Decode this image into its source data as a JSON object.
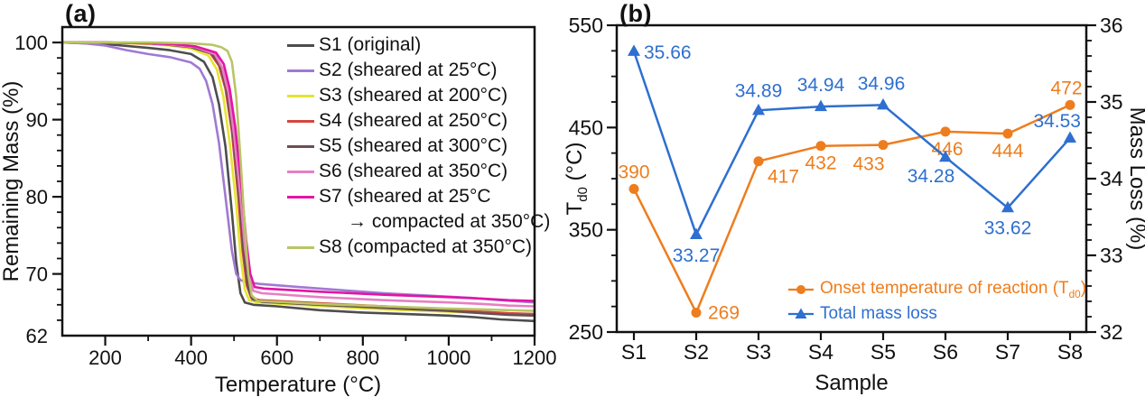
{
  "figure": {
    "background": "#ffffff",
    "text_color": "#111111"
  },
  "chart_data": [
    {
      "type": "line",
      "title": "(a)",
      "xlabel": "Temperature (°C)",
      "ylabel": "Remaining Mass (%)",
      "xlim": [
        100,
        1200
      ],
      "ylim": [
        62,
        102
      ],
      "xticks": [
        200,
        400,
        600,
        800,
        1000,
        1200
      ],
      "xminor_step": 100,
      "yticks": [
        70,
        80,
        90,
        100
      ],
      "yminor_step": 2,
      "extra_ytick_label": "62",
      "grid": false,
      "legend_position": "upper right",
      "series": [
        {
          "id": "S1",
          "label": "S1 (original)",
          "color": "#4d4d4d",
          "points": [
            [
              100,
              100
            ],
            [
              200,
              99.8
            ],
            [
              300,
              99.3
            ],
            [
              350,
              99.0
            ],
            [
              400,
              98.5
            ],
            [
              430,
              97.5
            ],
            [
              450,
              95.5
            ],
            [
              465,
              92
            ],
            [
              480,
              86.5
            ],
            [
              495,
              78
            ],
            [
              505,
              71.5
            ],
            [
              515,
              67.5
            ],
            [
              525,
              66.3
            ],
            [
              545,
              66.0
            ],
            [
              600,
              65.8
            ],
            [
              700,
              65.3
            ],
            [
              800,
              65.0
            ],
            [
              900,
              64.8
            ],
            [
              1000,
              64.6
            ],
            [
              1060,
              64.4
            ],
            [
              1120,
              64.1
            ],
            [
              1200,
              63.9
            ]
          ]
        },
        {
          "id": "S2",
          "label": "S2 (sheared at 25°C)",
          "color": "#a179d2",
          "points": [
            [
              100,
              100
            ],
            [
              150,
              99.9
            ],
            [
              200,
              99.6
            ],
            [
              250,
              99.0
            ],
            [
              300,
              98.5
            ],
            [
              350,
              98.1
            ],
            [
              400,
              97.4
            ],
            [
              420,
              96.6
            ],
            [
              435,
              95.0
            ],
            [
              450,
              92.0
            ],
            [
              465,
              87.0
            ],
            [
              480,
              80.0
            ],
            [
              495,
              73.0
            ],
            [
              505,
              70.0
            ],
            [
              515,
              69.2
            ],
            [
              530,
              68.9
            ],
            [
              560,
              68.7
            ],
            [
              650,
              68.3
            ],
            [
              750,
              67.9
            ],
            [
              850,
              67.5
            ],
            [
              950,
              67.2
            ],
            [
              1050,
              66.9
            ],
            [
              1120,
              66.6
            ],
            [
              1200,
              66.3
            ]
          ]
        },
        {
          "id": "S3",
          "label": "S3 (sheared at 200°C)",
          "color": "#e5e431",
          "points": [
            [
              100,
              100
            ],
            [
              200,
              100
            ],
            [
              300,
              99.8
            ],
            [
              350,
              99.6
            ],
            [
              400,
              99.2
            ],
            [
              440,
              98.3
            ],
            [
              460,
              96.5
            ],
            [
              475,
              93.0
            ],
            [
              490,
              87.0
            ],
            [
              505,
              79.0
            ],
            [
              515,
              72.5
            ],
            [
              525,
              68.0
            ],
            [
              535,
              66.6
            ],
            [
              555,
              66.3
            ],
            [
              650,
              66.0
            ],
            [
              750,
              65.7
            ],
            [
              850,
              65.4
            ],
            [
              950,
              65.2
            ],
            [
              1050,
              65.0
            ],
            [
              1120,
              64.9
            ],
            [
              1200,
              64.8
            ]
          ]
        },
        {
          "id": "S4",
          "label": "S4 (sheared at 250°C)",
          "color": "#d5463c",
          "points": [
            [
              100,
              100
            ],
            [
              200,
              100
            ],
            [
              300,
              99.9
            ],
            [
              350,
              99.7
            ],
            [
              400,
              99.4
            ],
            [
              445,
              98.6
            ],
            [
              465,
              97.0
            ],
            [
              480,
              94.0
            ],
            [
              495,
              88.5
            ],
            [
              510,
              80.0
            ],
            [
              520,
              73.0
            ],
            [
              530,
              68.5
            ],
            [
              540,
              66.9
            ],
            [
              560,
              66.6
            ],
            [
              700,
              66.2
            ],
            [
              850,
              65.8
            ],
            [
              1000,
              65.4
            ],
            [
              1080,
              65.1
            ],
            [
              1140,
              64.9
            ],
            [
              1200,
              64.8
            ]
          ]
        },
        {
          "id": "S5",
          "label": "S5 (sheared at 300°C)",
          "color": "#6a4f52",
          "points": [
            [
              100,
              100
            ],
            [
              200,
              100
            ],
            [
              300,
              99.9
            ],
            [
              350,
              99.7
            ],
            [
              400,
              99.4
            ],
            [
              448,
              98.6
            ],
            [
              468,
              97.0
            ],
            [
              483,
              93.8
            ],
            [
              498,
              88.0
            ],
            [
              513,
              79.5
            ],
            [
              523,
              72.5
            ],
            [
              533,
              68.2
            ],
            [
              543,
              66.7
            ],
            [
              565,
              66.4
            ],
            [
              700,
              66.0
            ],
            [
              850,
              65.6
            ],
            [
              1000,
              65.2
            ],
            [
              1080,
              64.9
            ],
            [
              1140,
              64.7
            ],
            [
              1200,
              64.6
            ]
          ]
        },
        {
          "id": "S6",
          "label": "S6 (sheared at 350°C)",
          "color": "#e77fc2",
          "points": [
            [
              100,
              100
            ],
            [
              200,
              100
            ],
            [
              300,
              99.9
            ],
            [
              360,
              99.7
            ],
            [
              410,
              99.4
            ],
            [
              455,
              98.5
            ],
            [
              472,
              96.8
            ],
            [
              487,
              93.5
            ],
            [
              500,
              88.0
            ],
            [
              515,
              80.0
            ],
            [
              525,
              73.5
            ],
            [
              535,
              69.5
            ],
            [
              545,
              67.8
            ],
            [
              565,
              67.5
            ],
            [
              700,
              67.0
            ],
            [
              850,
              66.6
            ],
            [
              1000,
              66.3
            ],
            [
              1080,
              66.1
            ],
            [
              1140,
              65.9
            ],
            [
              1200,
              65.8
            ]
          ]
        },
        {
          "id": "S7",
          "label": "S7 (sheared at 25°C",
          "label2": "→ compacted at 350°C)",
          "color": "#e215a5",
          "points": [
            [
              100,
              100
            ],
            [
              200,
              100
            ],
            [
              300,
              99.9
            ],
            [
              360,
              99.8
            ],
            [
              410,
              99.5
            ],
            [
              458,
              98.7
            ],
            [
              476,
              97.2
            ],
            [
              490,
              94.0
            ],
            [
              503,
              89.0
            ],
            [
              518,
              81.0
            ],
            [
              528,
              74.5
            ],
            [
              538,
              70.0
            ],
            [
              548,
              68.3
            ],
            [
              570,
              68.1
            ],
            [
              700,
              67.7
            ],
            [
              850,
              67.3
            ],
            [
              1000,
              67.0
            ],
            [
              1080,
              66.8
            ],
            [
              1140,
              66.6
            ],
            [
              1200,
              66.5
            ]
          ]
        },
        {
          "id": "S8",
          "label": "S8 (compacted at 350°C)",
          "color": "#b9c565",
          "points": [
            [
              100,
              100
            ],
            [
              200,
              100
            ],
            [
              300,
              100
            ],
            [
              400,
              99.9
            ],
            [
              450,
              99.7
            ],
            [
              470,
              99.4
            ],
            [
              485,
              98.9
            ],
            [
              495,
              97.5
            ],
            [
              505,
              93.0
            ],
            [
              515,
              85.0
            ],
            [
              525,
              76.0
            ],
            [
              533,
              70.0
            ],
            [
              541,
              67.2
            ],
            [
              555,
              66.5
            ],
            [
              700,
              66.1
            ],
            [
              850,
              65.8
            ],
            [
              1000,
              65.5
            ],
            [
              1080,
              65.4
            ],
            [
              1140,
              65.3
            ],
            [
              1200,
              65.2
            ]
          ]
        }
      ]
    },
    {
      "type": "line",
      "title": "(b)",
      "xlabel": "Sample",
      "categories": [
        "S1",
        "S2",
        "S3",
        "S4",
        "S5",
        "S6",
        "S7",
        "S8"
      ],
      "ylabel_left_parts": [
        {
          "t": "T"
        },
        {
          "t": "d0",
          "sub": true
        },
        {
          "t": " (°C)"
        }
      ],
      "ylabel_right": "Mass Loss (%)",
      "ylim_left": [
        250,
        550
      ],
      "yticks_left": [
        250,
        350,
        450,
        550
      ],
      "yminor_left": 25,
      "ylim_right": [
        32,
        36
      ],
      "yticks_right": [
        32,
        33,
        34,
        35,
        36
      ],
      "yminor_right": 0.2,
      "grid": false,
      "legend_position": "lower right",
      "series": [
        {
          "id": "td0",
          "name": "Onset temperature of reaction (Td0)",
          "label_parts": [
            {
              "t": "Onset temperature of reaction (T"
            },
            {
              "t": "d0",
              "sub": true
            },
            {
              "t": ")"
            }
          ],
          "axis": "left",
          "color": "#ee7d1e",
          "marker": "circle",
          "values": [
            390,
            269,
            417,
            432,
            433,
            446,
            444,
            472
          ],
          "label_offsets": [
            [
              0,
              -12,
              "middle"
            ],
            [
              13,
              7,
              "start"
            ],
            [
              10,
              24,
              "start"
            ],
            [
              0,
              26,
              "middle"
            ],
            [
              -16,
              28,
              "middle"
            ],
            [
              2,
              26,
              "middle"
            ],
            [
              0,
              26,
              "middle"
            ],
            [
              -4,
              -12,
              "middle"
            ]
          ]
        },
        {
          "id": "mass_loss",
          "name": "Total mass loss",
          "label_parts": [
            {
              "t": "Total mass loss"
            }
          ],
          "axis": "right",
          "color": "#2e6fd0",
          "marker": "triangle",
          "values": [
            35.66,
            33.27,
            34.89,
            34.94,
            34.96,
            34.28,
            33.62,
            34.53
          ],
          "label_offsets": [
            [
              11,
              8,
              "start"
            ],
            [
              0,
              30,
              "middle"
            ],
            [
              0,
              -15,
              "middle"
            ],
            [
              0,
              -17,
              "middle"
            ],
            [
              -2,
              -17,
              "middle"
            ],
            [
              -16,
              28,
              "middle"
            ],
            [
              0,
              29,
              "middle"
            ],
            [
              12,
              -12,
              "end"
            ]
          ]
        }
      ]
    }
  ]
}
